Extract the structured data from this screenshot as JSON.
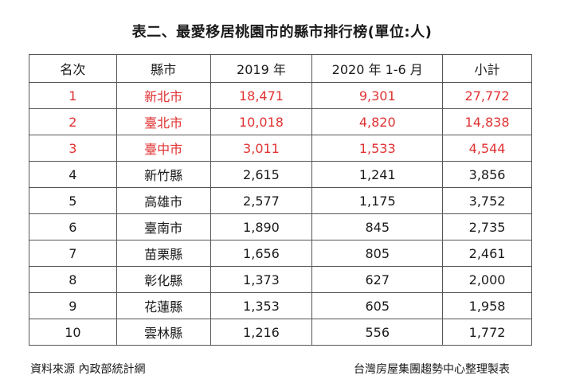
{
  "title": "表二、最愛移居桃園市的縣市排行榜(單位:人)",
  "headers": [
    "名次",
    "縣市",
    "2019 年",
    "2020 年 1-6 月",
    "小計"
  ],
  "highlight_color": "#e03232",
  "rows": [
    {
      "rank": "1",
      "city": "新北市",
      "y2019": "18,471",
      "y2020": "9,301",
      "total": "27,772"
    },
    {
      "rank": "2",
      "city": "臺北市",
      "y2019": "10,018",
      "y2020": "4,820",
      "total": "14,838"
    },
    {
      "rank": "3",
      "city": "臺中市",
      "y2019": "3,011",
      "y2020": "1,533",
      "total": "4,544"
    },
    {
      "rank": "4",
      "city": "新竹縣",
      "y2019": "2,615",
      "y2020": "1,241",
      "total": "3,856"
    },
    {
      "rank": "5",
      "city": "高雄市",
      "y2019": "2,577",
      "y2020": "1,175",
      "total": "3,752"
    },
    {
      "rank": "6",
      "city": "臺南市",
      "y2019": "1,890",
      "y2020": "845",
      "total": "2,735"
    },
    {
      "rank": "7",
      "city": "苗栗縣",
      "y2019": "1,656",
      "y2020": "805",
      "total": "2,461"
    },
    {
      "rank": "8",
      "city": "彰化縣",
      "y2019": "1,373",
      "y2020": "627",
      "total": "2,000"
    },
    {
      "rank": "9",
      "city": "花蓮縣",
      "y2019": "1,353",
      "y2020": "605",
      "total": "1,958"
    },
    {
      "rank": "10",
      "city": "雲林縣",
      "y2019": "1,216",
      "y2020": "556",
      "total": "1,772"
    }
  ],
  "footer": {
    "source": "資料來源 內政部統計網",
    "credit": "台灣房屋集團趨勢中心整理製表"
  }
}
